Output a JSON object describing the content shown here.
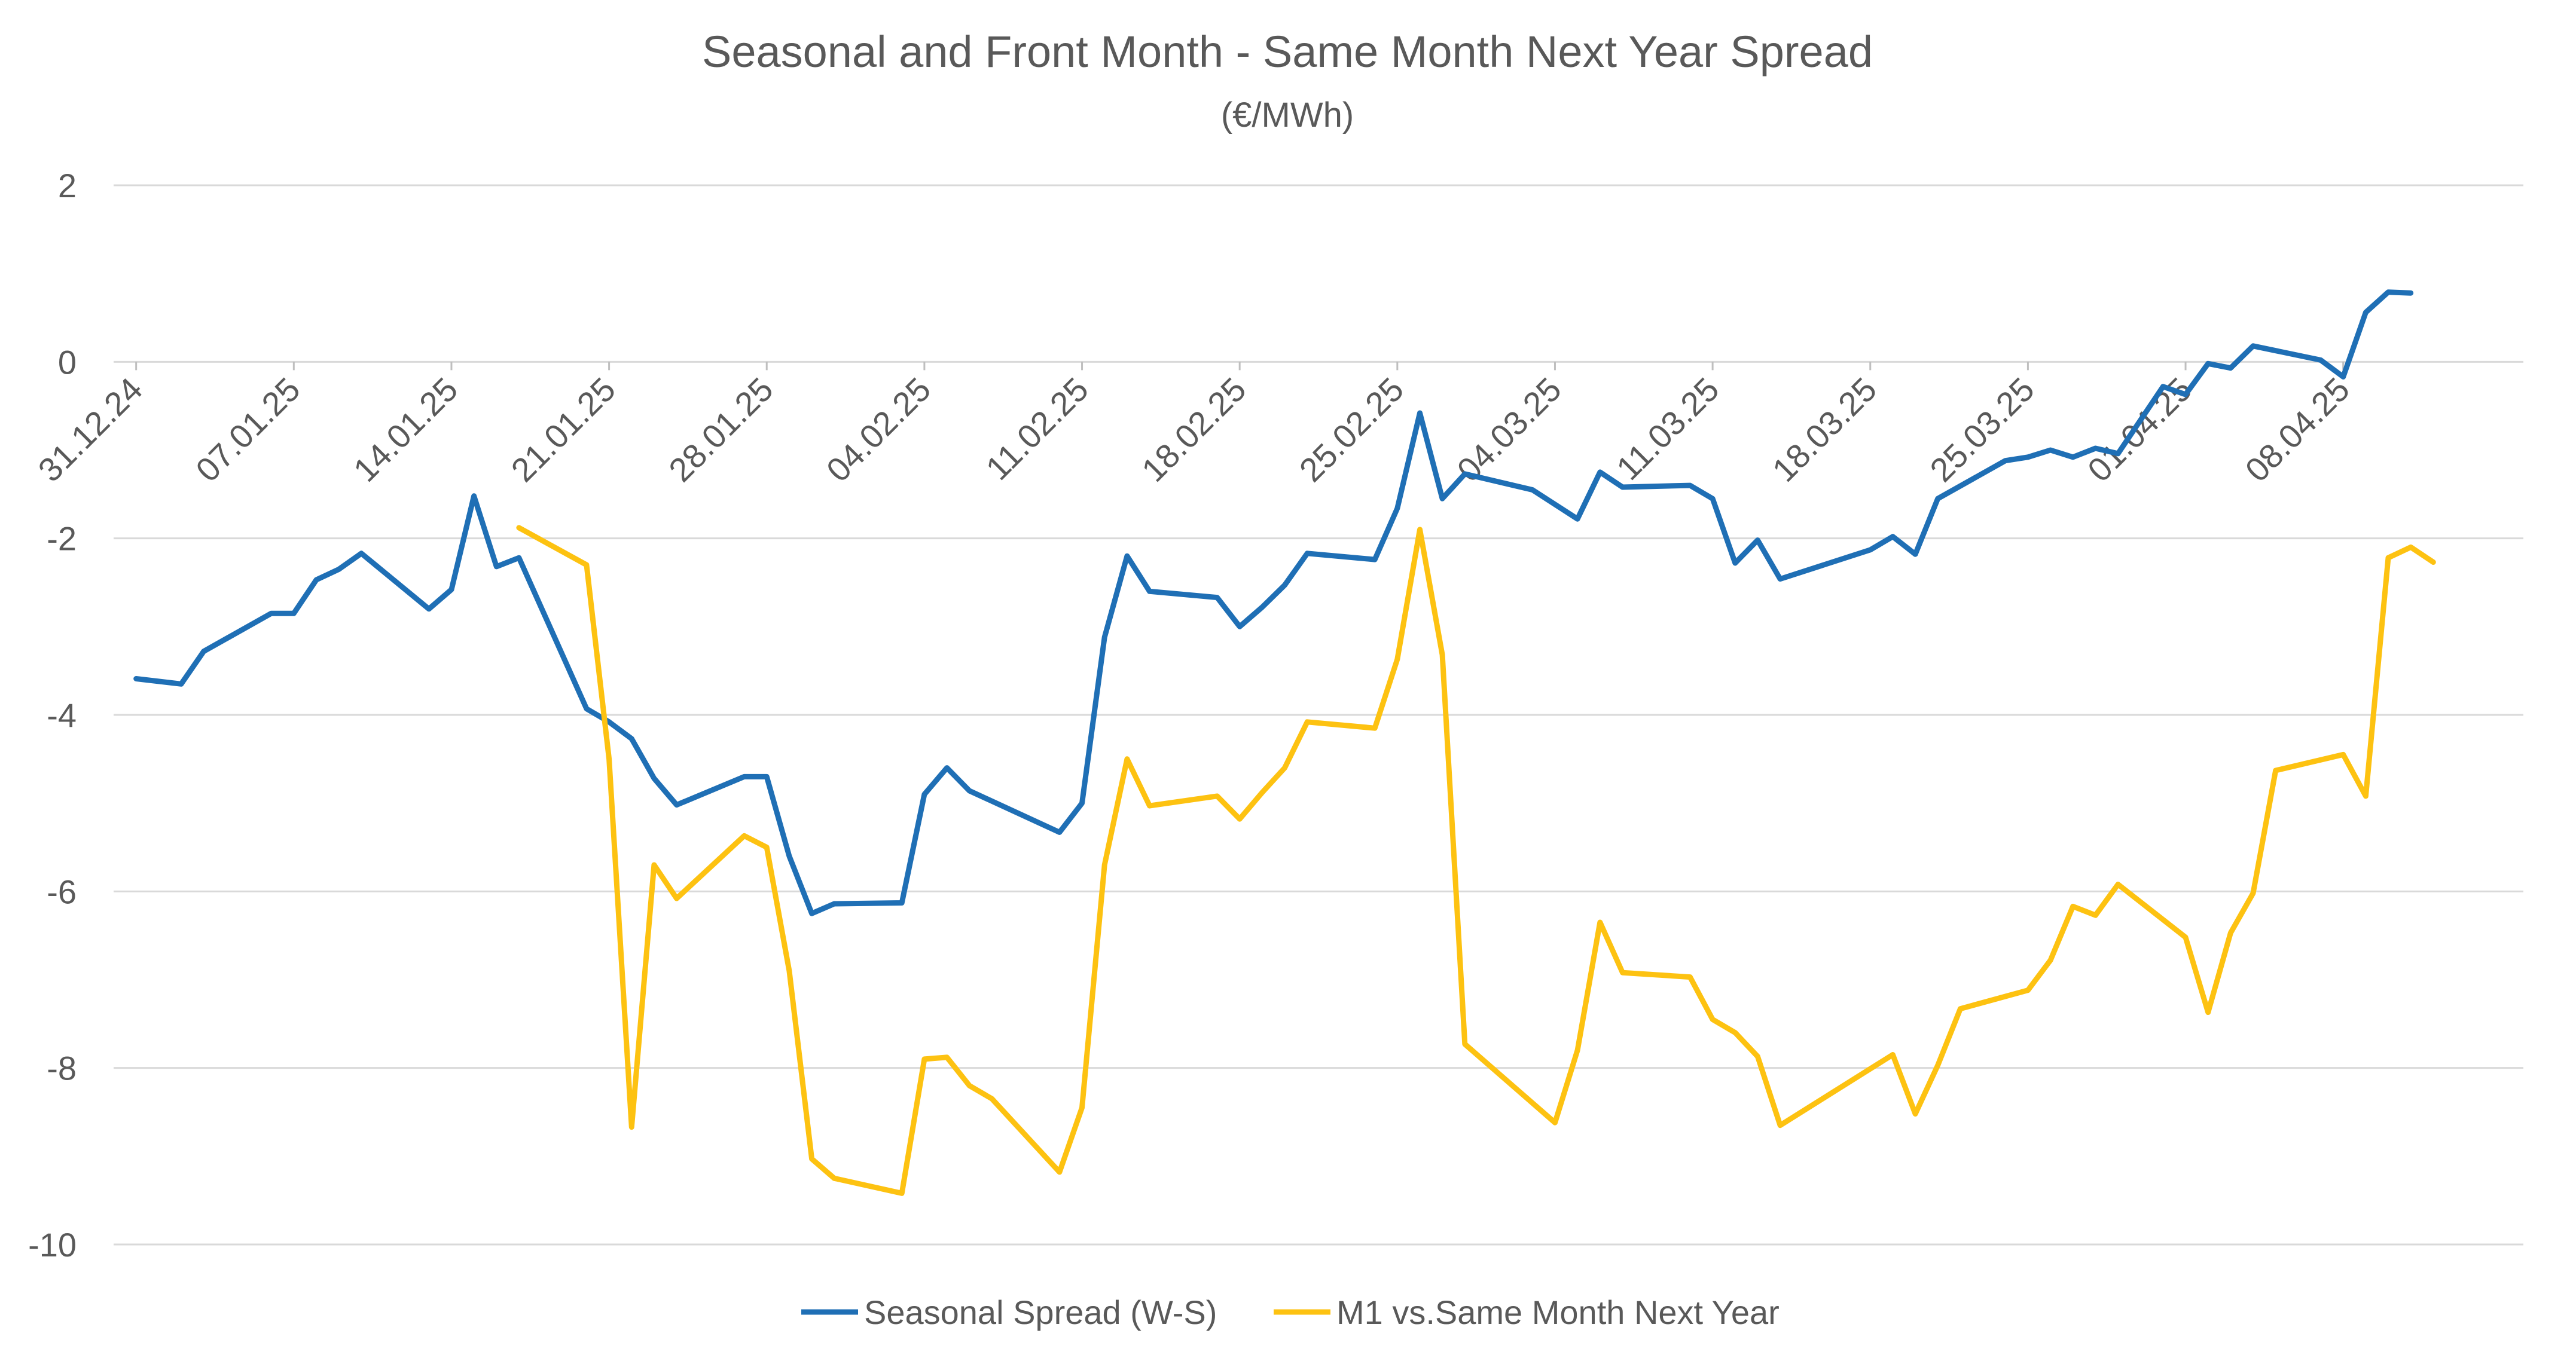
{
  "chart_data": {
    "type": "line",
    "title": "Seasonal and Front Month - Same Month Next Year Spread",
    "subtitle": "(€/MWh)",
    "xlabel": "",
    "ylabel": "",
    "ylim": [
      -10,
      2
    ],
    "yticks": [
      "2",
      "0",
      "-2",
      "-4",
      "-6",
      "-8",
      "-10"
    ],
    "x_range": [
      "2024-12-30",
      "2025-04-16"
    ],
    "x_tick_labels": [
      {
        "date": "2024-12-31",
        "label": "31.12.24"
      },
      {
        "date": "2025-01-07",
        "label": "07.01.25"
      },
      {
        "date": "2025-01-14",
        "label": "14.01.25"
      },
      {
        "date": "2025-01-21",
        "label": "21.01.25"
      },
      {
        "date": "2025-01-28",
        "label": "28.01.25"
      },
      {
        "date": "2025-02-04",
        "label": "04.02.25"
      },
      {
        "date": "2025-02-11",
        "label": "11.02.25"
      },
      {
        "date": "2025-02-18",
        "label": "18.02.25"
      },
      {
        "date": "2025-02-25",
        "label": "25.02.25"
      },
      {
        "date": "2025-03-04",
        "label": "04.03.25"
      },
      {
        "date": "2025-03-11",
        "label": "11.03.25"
      },
      {
        "date": "2025-03-18",
        "label": "18.03.25"
      },
      {
        "date": "2025-03-25",
        "label": "25.03.25"
      },
      {
        "date": "2025-04-01",
        "label": "01.04.25"
      },
      {
        "date": "2025-04-08",
        "label": "08.04.25"
      }
    ],
    "grid": true,
    "legend_position": "bottom",
    "series": [
      {
        "name": "Seasonal Spread (W-S)",
        "color": "#1F6FB5",
        "points": [
          {
            "x": "2024-12-31",
            "y": -3.59
          },
          {
            "x": "2025-01-02",
            "y": -3.65
          },
          {
            "x": "2025-01-03",
            "y": -3.28
          },
          {
            "x": "2025-01-06",
            "y": -2.85
          },
          {
            "x": "2025-01-07",
            "y": -2.85
          },
          {
            "x": "2025-01-08",
            "y": -2.47
          },
          {
            "x": "2025-01-09",
            "y": -2.35
          },
          {
            "x": "2025-01-10",
            "y": -2.17
          },
          {
            "x": "2025-01-13",
            "y": -2.8
          },
          {
            "x": "2025-01-14",
            "y": -2.58
          },
          {
            "x": "2025-01-15",
            "y": -1.52
          },
          {
            "x": "2025-01-16",
            "y": -2.32
          },
          {
            "x": "2025-01-17",
            "y": -2.22
          },
          {
            "x": "2025-01-20",
            "y": -3.93
          },
          {
            "x": "2025-01-21",
            "y": -4.08
          },
          {
            "x": "2025-01-22",
            "y": -4.27
          },
          {
            "x": "2025-01-23",
            "y": -4.72
          },
          {
            "x": "2025-01-24",
            "y": -5.02
          },
          {
            "x": "2025-01-27",
            "y": -4.7
          },
          {
            "x": "2025-01-28",
            "y": -4.7
          },
          {
            "x": "2025-01-29",
            "y": -5.6
          },
          {
            "x": "2025-01-30",
            "y": -6.25
          },
          {
            "x": "2025-01-31",
            "y": -6.14
          },
          {
            "x": "2025-02-03",
            "y": -6.13
          },
          {
            "x": "2025-02-04",
            "y": -4.9
          },
          {
            "x": "2025-02-05",
            "y": -4.6
          },
          {
            "x": "2025-02-06",
            "y": -4.86
          },
          {
            "x": "2025-02-10",
            "y": -5.33
          },
          {
            "x": "2025-02-11",
            "y": -5.0
          },
          {
            "x": "2025-02-12",
            "y": -3.12
          },
          {
            "x": "2025-02-13",
            "y": -2.2
          },
          {
            "x": "2025-02-14",
            "y": -2.6
          },
          {
            "x": "2025-02-17",
            "y": -2.67
          },
          {
            "x": "2025-02-18",
            "y": -3.0
          },
          {
            "x": "2025-02-19",
            "y": -2.78
          },
          {
            "x": "2025-02-20",
            "y": -2.53
          },
          {
            "x": "2025-02-21",
            "y": -2.17
          },
          {
            "x": "2025-02-24",
            "y": -2.24
          },
          {
            "x": "2025-02-25",
            "y": -1.66
          },
          {
            "x": "2025-02-26",
            "y": -0.58
          },
          {
            "x": "2025-02-27",
            "y": -1.55
          },
          {
            "x": "2025-02-28",
            "y": -1.27
          },
          {
            "x": "2025-03-03",
            "y": -1.45
          },
          {
            "x": "2025-03-05",
            "y": -1.78
          },
          {
            "x": "2025-03-06",
            "y": -1.25
          },
          {
            "x": "2025-03-07",
            "y": -1.42
          },
          {
            "x": "2025-03-10",
            "y": -1.4
          },
          {
            "x": "2025-03-11",
            "y": -1.55
          },
          {
            "x": "2025-03-12",
            "y": -2.28
          },
          {
            "x": "2025-03-13",
            "y": -2.02
          },
          {
            "x": "2025-03-14",
            "y": -2.46
          },
          {
            "x": "2025-03-18",
            "y": -2.13
          },
          {
            "x": "2025-03-19",
            "y": -1.98
          },
          {
            "x": "2025-03-20",
            "y": -2.18
          },
          {
            "x": "2025-03-21",
            "y": -1.55
          },
          {
            "x": "2025-03-24",
            "y": -1.12
          },
          {
            "x": "2025-03-25",
            "y": -1.08
          },
          {
            "x": "2025-03-26",
            "y": -1.0
          },
          {
            "x": "2025-03-27",
            "y": -1.08
          },
          {
            "x": "2025-03-28",
            "y": -0.98
          },
          {
            "x": "2025-03-29",
            "y": -1.04
          },
          {
            "x": "2025-03-31",
            "y": -0.28
          },
          {
            "x": "2025-04-01",
            "y": -0.37
          },
          {
            "x": "2025-04-02",
            "y": -0.02
          },
          {
            "x": "2025-04-03",
            "y": -0.07
          },
          {
            "x": "2025-04-04",
            "y": 0.18
          },
          {
            "x": "2025-04-07",
            "y": 0.02
          },
          {
            "x": "2025-04-08",
            "y": -0.17
          },
          {
            "x": "2025-04-09",
            "y": 0.56
          },
          {
            "x": "2025-04-10",
            "y": 0.79
          },
          {
            "x": "2025-04-11",
            "y": 0.78
          }
        ]
      },
      {
        "name": "M1 vs.Same Month Next Year",
        "color": "#FDC211",
        "points": [
          {
            "x": "2025-01-17",
            "y": -1.88
          },
          {
            "x": "2025-01-20",
            "y": -2.3
          },
          {
            "x": "2025-01-21",
            "y": -4.5
          },
          {
            "x": "2025-01-22",
            "y": -8.67
          },
          {
            "x": "2025-01-23",
            "y": -5.7
          },
          {
            "x": "2025-01-24",
            "y": -6.08
          },
          {
            "x": "2025-01-27",
            "y": -5.37
          },
          {
            "x": "2025-01-28",
            "y": -5.5
          },
          {
            "x": "2025-01-29",
            "y": -6.9
          },
          {
            "x": "2025-01-30",
            "y": -9.03
          },
          {
            "x": "2025-01-31",
            "y": -9.25
          },
          {
            "x": "2025-02-03",
            "y": -9.42
          },
          {
            "x": "2025-02-04",
            "y": -7.9
          },
          {
            "x": "2025-02-05",
            "y": -7.88
          },
          {
            "x": "2025-02-06",
            "y": -8.2
          },
          {
            "x": "2025-02-07",
            "y": -8.35
          },
          {
            "x": "2025-02-10",
            "y": -9.18
          },
          {
            "x": "2025-02-11",
            "y": -8.45
          },
          {
            "x": "2025-02-12",
            "y": -5.7
          },
          {
            "x": "2025-02-13",
            "y": -4.5
          },
          {
            "x": "2025-02-14",
            "y": -5.03
          },
          {
            "x": "2025-02-17",
            "y": -4.92
          },
          {
            "x": "2025-02-18",
            "y": -5.18
          },
          {
            "x": "2025-02-19",
            "y": -4.88
          },
          {
            "x": "2025-02-20",
            "y": -4.6
          },
          {
            "x": "2025-02-21",
            "y": -4.08
          },
          {
            "x": "2025-02-24",
            "y": -4.15
          },
          {
            "x": "2025-02-25",
            "y": -3.37
          },
          {
            "x": "2025-02-26",
            "y": -1.9
          },
          {
            "x": "2025-02-27",
            "y": -3.32
          },
          {
            "x": "2025-02-28",
            "y": -7.73
          },
          {
            "x": "2025-03-04",
            "y": -8.62
          },
          {
            "x": "2025-03-05",
            "y": -7.8
          },
          {
            "x": "2025-03-06",
            "y": -6.35
          },
          {
            "x": "2025-03-07",
            "y": -6.92
          },
          {
            "x": "2025-03-10",
            "y": -6.97
          },
          {
            "x": "2025-03-11",
            "y": -7.45
          },
          {
            "x": "2025-03-12",
            "y": -7.6
          },
          {
            "x": "2025-03-13",
            "y": -7.87
          },
          {
            "x": "2025-03-14",
            "y": -8.65
          },
          {
            "x": "2025-03-19",
            "y": -7.85
          },
          {
            "x": "2025-03-20",
            "y": -8.52
          },
          {
            "x": "2025-03-21",
            "y": -7.97
          },
          {
            "x": "2025-03-22",
            "y": -7.33
          },
          {
            "x": "2025-03-25",
            "y": -7.12
          },
          {
            "x": "2025-03-26",
            "y": -6.78
          },
          {
            "x": "2025-03-27",
            "y": -6.17
          },
          {
            "x": "2025-03-28",
            "y": -6.27
          },
          {
            "x": "2025-03-29",
            "y": -5.92
          },
          {
            "x": "2025-04-01",
            "y": -6.52
          },
          {
            "x": "2025-04-02",
            "y": -7.37
          },
          {
            "x": "2025-04-03",
            "y": -6.47
          },
          {
            "x": "2025-04-04",
            "y": -6.02
          },
          {
            "x": "2025-04-05",
            "y": -4.63
          },
          {
            "x": "2025-04-08",
            "y": -4.45
          },
          {
            "x": "2025-04-09",
            "y": -4.92
          },
          {
            "x": "2025-04-10",
            "y": -2.22
          },
          {
            "x": "2025-04-11",
            "y": -2.1
          },
          {
            "x": "2025-04-12",
            "y": -2.27
          }
        ]
      }
    ]
  }
}
